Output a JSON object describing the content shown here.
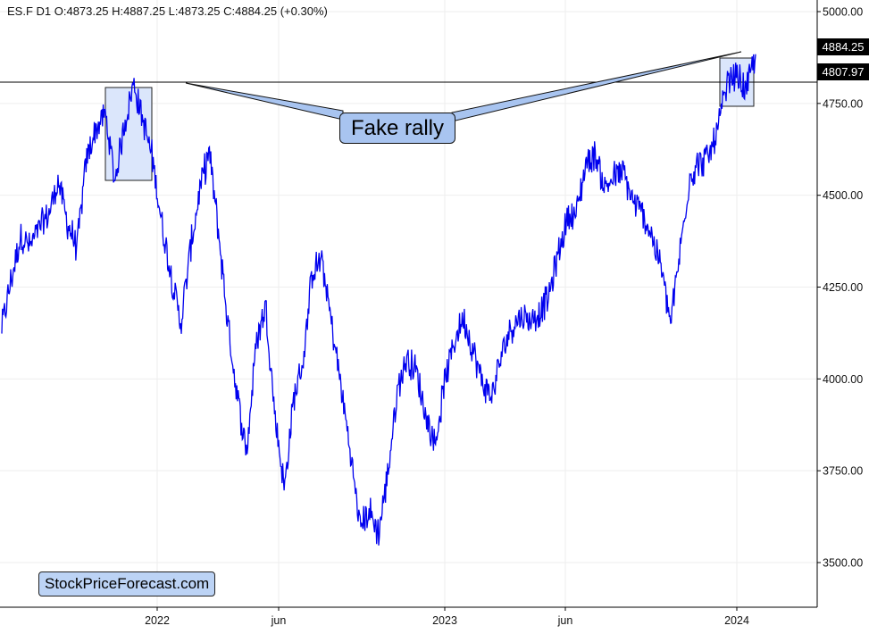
{
  "header": {
    "ohlc_text": "ES.F  D1  O:4873.25  H:4887.25  L:4873.25  C:4884.25  (+0.30%)"
  },
  "annotations": {
    "callout_label": "Fake rally",
    "brand_label": "StockPriceForecast.com",
    "last_price_label": "4884.25",
    "level_label": "4807.97"
  },
  "colors": {
    "series": "#0000ee",
    "callout_fill": "#a8c4f0",
    "box_fill": "#dbe6fb",
    "grid": "#eeeeee"
  },
  "chart_data": {
    "type": "line",
    "title": "",
    "xlabel": "",
    "ylabel": "",
    "ylim": [
      3430,
      5020
    ],
    "x_ticks": [
      "2022",
      "jun",
      "2023",
      "jun",
      "2024"
    ],
    "y_ticks": [
      "5000.00",
      "4750.00",
      "4500.00",
      "4250.00",
      "4000.00",
      "3750.00",
      "3500.00"
    ],
    "horizontal_level": 4807.97,
    "last_price": 4884.25,
    "series": [
      {
        "values": [
          4140,
          4270,
          4390,
          4360,
          4410,
          4450,
          4540,
          4420,
          4360,
          4600,
          4680,
          4720,
          4540,
          4690,
          4805,
          4700,
          4600,
          4420,
          4280,
          4150,
          4350,
          4510,
          4620,
          4400,
          4150,
          3950,
          3800,
          4100,
          4200,
          3900,
          3700,
          3950,
          4050,
          4300,
          4320,
          4150,
          3980,
          3800,
          3600,
          3640,
          3580,
          3750,
          3970,
          4060,
          4020,
          3900,
          3820,
          3990,
          4100,
          4170,
          4080,
          3990,
          3950,
          4060,
          4140,
          4170,
          4160,
          4180,
          4220,
          4330,
          4440,
          4450,
          4590,
          4610,
          4520,
          4550,
          4560,
          4480,
          4450,
          4390,
          4300,
          4150,
          4350,
          4550,
          4590,
          4600,
          4680,
          4800,
          4830,
          4780,
          4884
        ]
      }
    ]
  }
}
